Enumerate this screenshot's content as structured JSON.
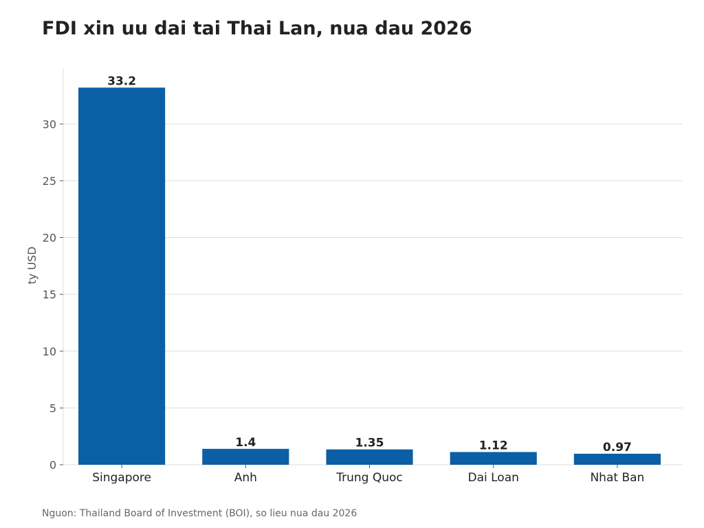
{
  "chart_data": {
    "type": "bar",
    "title": "FDI xin uu dai tai Thai Lan, nua dau 2026",
    "xlabel": "",
    "ylabel": "ty USD",
    "categories": [
      "Singapore",
      "Anh",
      "Trung Quoc",
      "Dai Loan",
      "Nhat Ban"
    ],
    "values": [
      33.2,
      1.4,
      1.35,
      1.12,
      0.97
    ],
    "value_labels": [
      "33.2",
      "1.4",
      "1.35",
      "1.12",
      "0.97"
    ],
    "yticks": [
      0,
      5,
      10,
      15,
      20,
      25,
      30
    ],
    "ylim": [
      0,
      34.86
    ],
    "grid": "horizontal",
    "bar_color": "#0b5fa5"
  },
  "source": "Nguon: Thailand Board of Investment (BOI), so lieu nua dau 2026"
}
